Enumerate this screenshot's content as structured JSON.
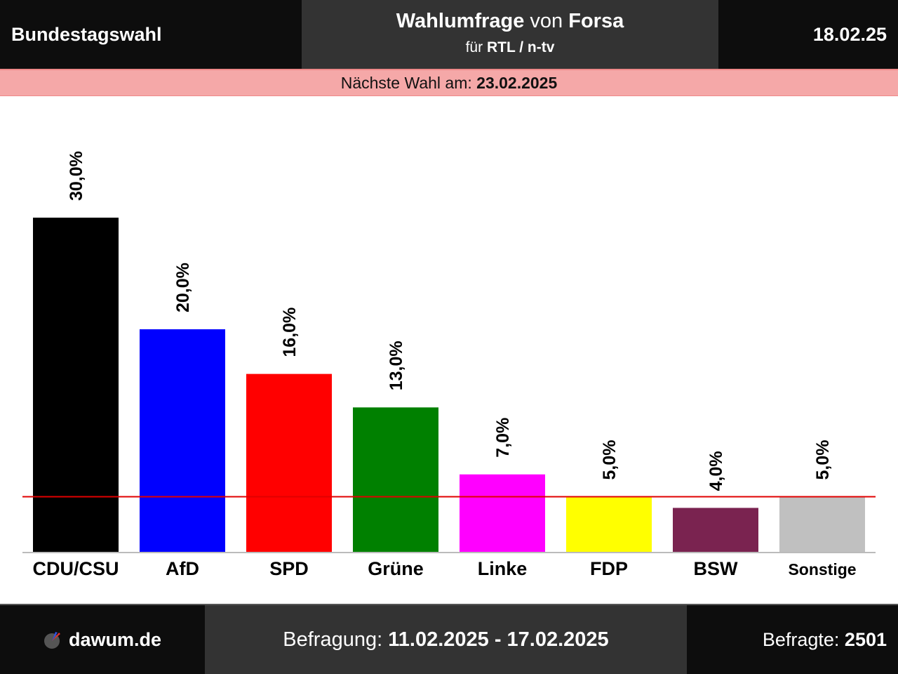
{
  "header": {
    "title": "Bundestagswahl",
    "poll_title": "Wahlumfrage",
    "poll_von": "von",
    "institute": "Forsa",
    "client_prefix": "für",
    "client": "RTL / n-tv",
    "date": "18.02.25"
  },
  "banner": {
    "label": "Nächste Wahl am:",
    "date": "23.02.2025"
  },
  "footer": {
    "site": "dawum.de",
    "survey_label": "Befragung:",
    "survey_period": "11.02.2025 - 17.02.2025",
    "respondents_label": "Befragte:",
    "respondents": "2501"
  },
  "chart_data": {
    "type": "bar",
    "categories": [
      "CDU/CSU",
      "AfD",
      "SPD",
      "Grüne",
      "Linke",
      "FDP",
      "BSW",
      "Sonstige"
    ],
    "values": [
      30.0,
      20.0,
      16.0,
      13.0,
      7.0,
      5.0,
      4.0,
      5.0
    ],
    "value_labels": [
      "30,0%",
      "20,0%",
      "16,0%",
      "13,0%",
      "7,0%",
      "5,0%",
      "4,0%",
      "5,0%"
    ],
    "colors": [
      "#000000",
      "#0000ff",
      "#ff0000",
      "#008000",
      "#ff00ff",
      "#ffff00",
      "#7a2350",
      "#c0c0c0"
    ],
    "threshold": 5.0,
    "threshold_color": "#e00000",
    "ylim": [
      0,
      30.0
    ],
    "title": "",
    "xlabel": "",
    "ylabel": ""
  }
}
